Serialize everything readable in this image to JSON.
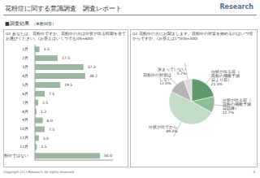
{
  "header": {
    "title": "花粉症に関する意識調査　調査レポート",
    "logo": "Research",
    "section": "■調査結果",
    "note": "（単数回答）",
    "copyright": "Copyright (C) i-Research All rights reserved",
    "page": "4"
  },
  "chart_data": [
    {
      "type": "bar",
      "title": "Q1 あなたは、花粉症ですか。花粉症の方は症状が出る時期を全てお選びください。(お答えはいくつでも)(N=600)",
      "orientation": "horizontal",
      "categories": [
        "1月",
        "2月",
        "3月",
        "4月",
        "5月",
        "6月",
        "7月",
        "8月",
        "9月",
        "10月",
        "11月",
        "12月",
        "花粉症ではない"
      ],
      "values": [
        3.5,
        17.5,
        37.3,
        38.7,
        19.5,
        7.5,
        2.5,
        1.2,
        6.0,
        7.5,
        3.0,
        1.5,
        50.0
      ],
      "value_labels": [
        "3.5",
        "17.5",
        "37.3",
        "38.7",
        "19.5",
        "7.5",
        "2.5",
        "1.2",
        "6.0",
        "7.5",
        "3.0",
        "1.5",
        "50.0"
      ],
      "color": "#9db8a2",
      "xlim": [
        0,
        60
      ],
      "data_labels": true,
      "tick_labels": "y"
    },
    {
      "type": "pie",
      "title": "Q2 花粉症の方にお聞きします。花粉症の対策を始めるのはいつ頃からですか。(お答えは1つ)(N=300)",
      "categories": [
        "症状が出る前（花粉の飛散予測日より前）",
        "症状が出る前（花粉の飛散予測日以降）",
        "症状が出てから",
        "花粉症の対策はしない",
        "決まっていない"
      ],
      "values": [
        21.3,
        11.7,
        49.3,
        12.0,
        5.7
      ],
      "value_labels": [
        "21.3%",
        "11.7%",
        "49.3%",
        "12.0%",
        "5.7%"
      ],
      "colors": [
        "#5f9a6c",
        "#8fbf95",
        "#c3dcc5",
        "#b5b5b5",
        "#dedede"
      ],
      "data_labels": true
    }
  ]
}
